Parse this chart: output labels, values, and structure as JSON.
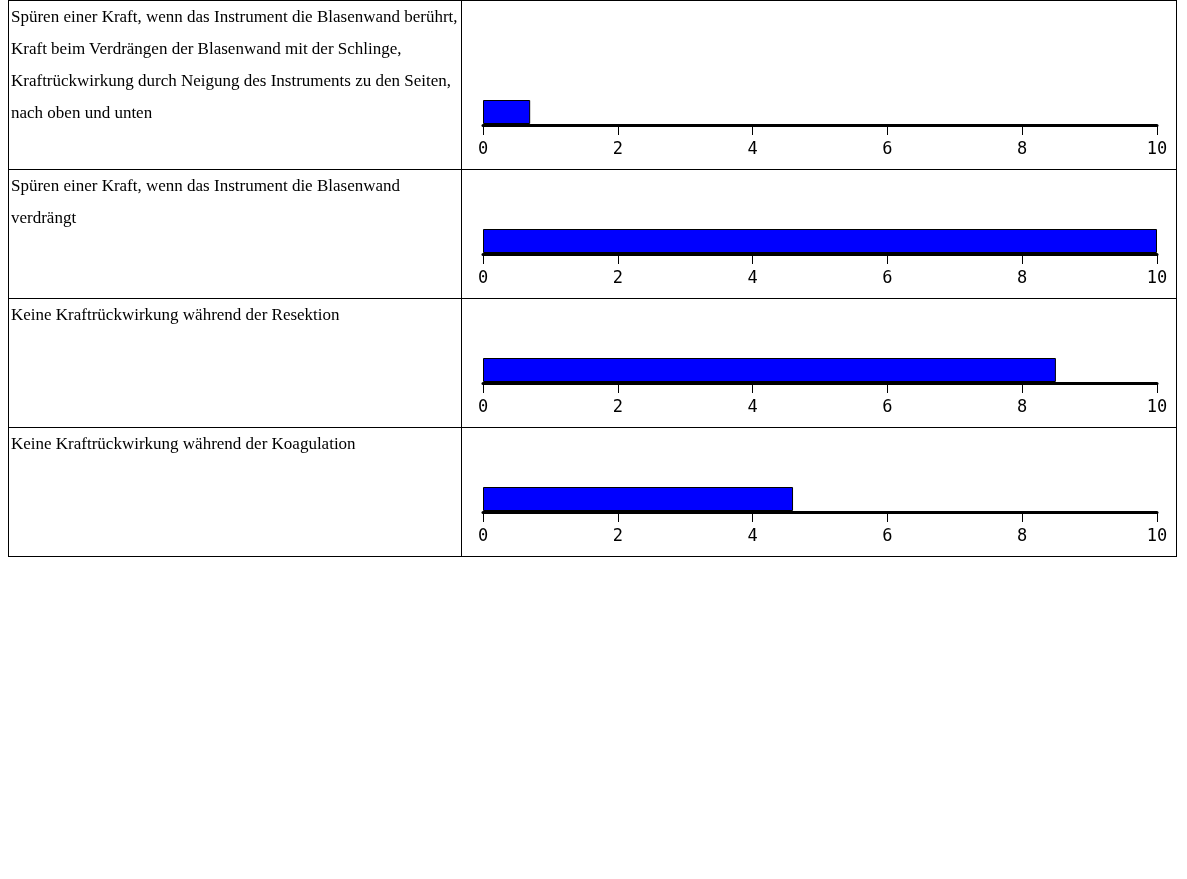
{
  "chart_data": [
    {
      "type": "bar",
      "orientation": "horizontal",
      "categories": [
        "Spüren einer Kraft, wenn das Instrument die Blasenwand berührt,\nKraft beim Verdrängen der Blasenwand mit der Schlinge,\nKraftrückwirkung durch Neigung des Instruments zu den Seiten, nach oben und unten"
      ],
      "values": [
        0.7
      ],
      "color": "#0000ff",
      "xlim": [
        0,
        10
      ],
      "xticks": [
        0,
        2,
        4,
        6,
        8,
        10
      ],
      "grid": false
    },
    {
      "type": "bar",
      "orientation": "horizontal",
      "categories": [
        "Spüren einer Kraft, wenn das Instrument die Blasenwand verdrängt"
      ],
      "values": [
        10
      ],
      "color": "#0000ff",
      "xlim": [
        0,
        10
      ],
      "xticks": [
        0,
        2,
        4,
        6,
        8,
        10
      ],
      "grid": false
    },
    {
      "type": "bar",
      "orientation": "horizontal",
      "categories": [
        "Keine Kraftrückwirkung während der Resektion"
      ],
      "values": [
        8.5
      ],
      "color": "#0000ff",
      "xlim": [
        0,
        10
      ],
      "xticks": [
        0,
        2,
        4,
        6,
        8,
        10
      ],
      "grid": false
    },
    {
      "type": "bar",
      "orientation": "horizontal",
      "categories": [
        "Keine Kraftrückwirkung während der Koagulation"
      ],
      "values": [
        4.6
      ],
      "color": "#0000ff",
      "xlim": [
        0,
        10
      ],
      "xticks": [
        0,
        2,
        4,
        6,
        8,
        10
      ],
      "grid": false
    }
  ]
}
